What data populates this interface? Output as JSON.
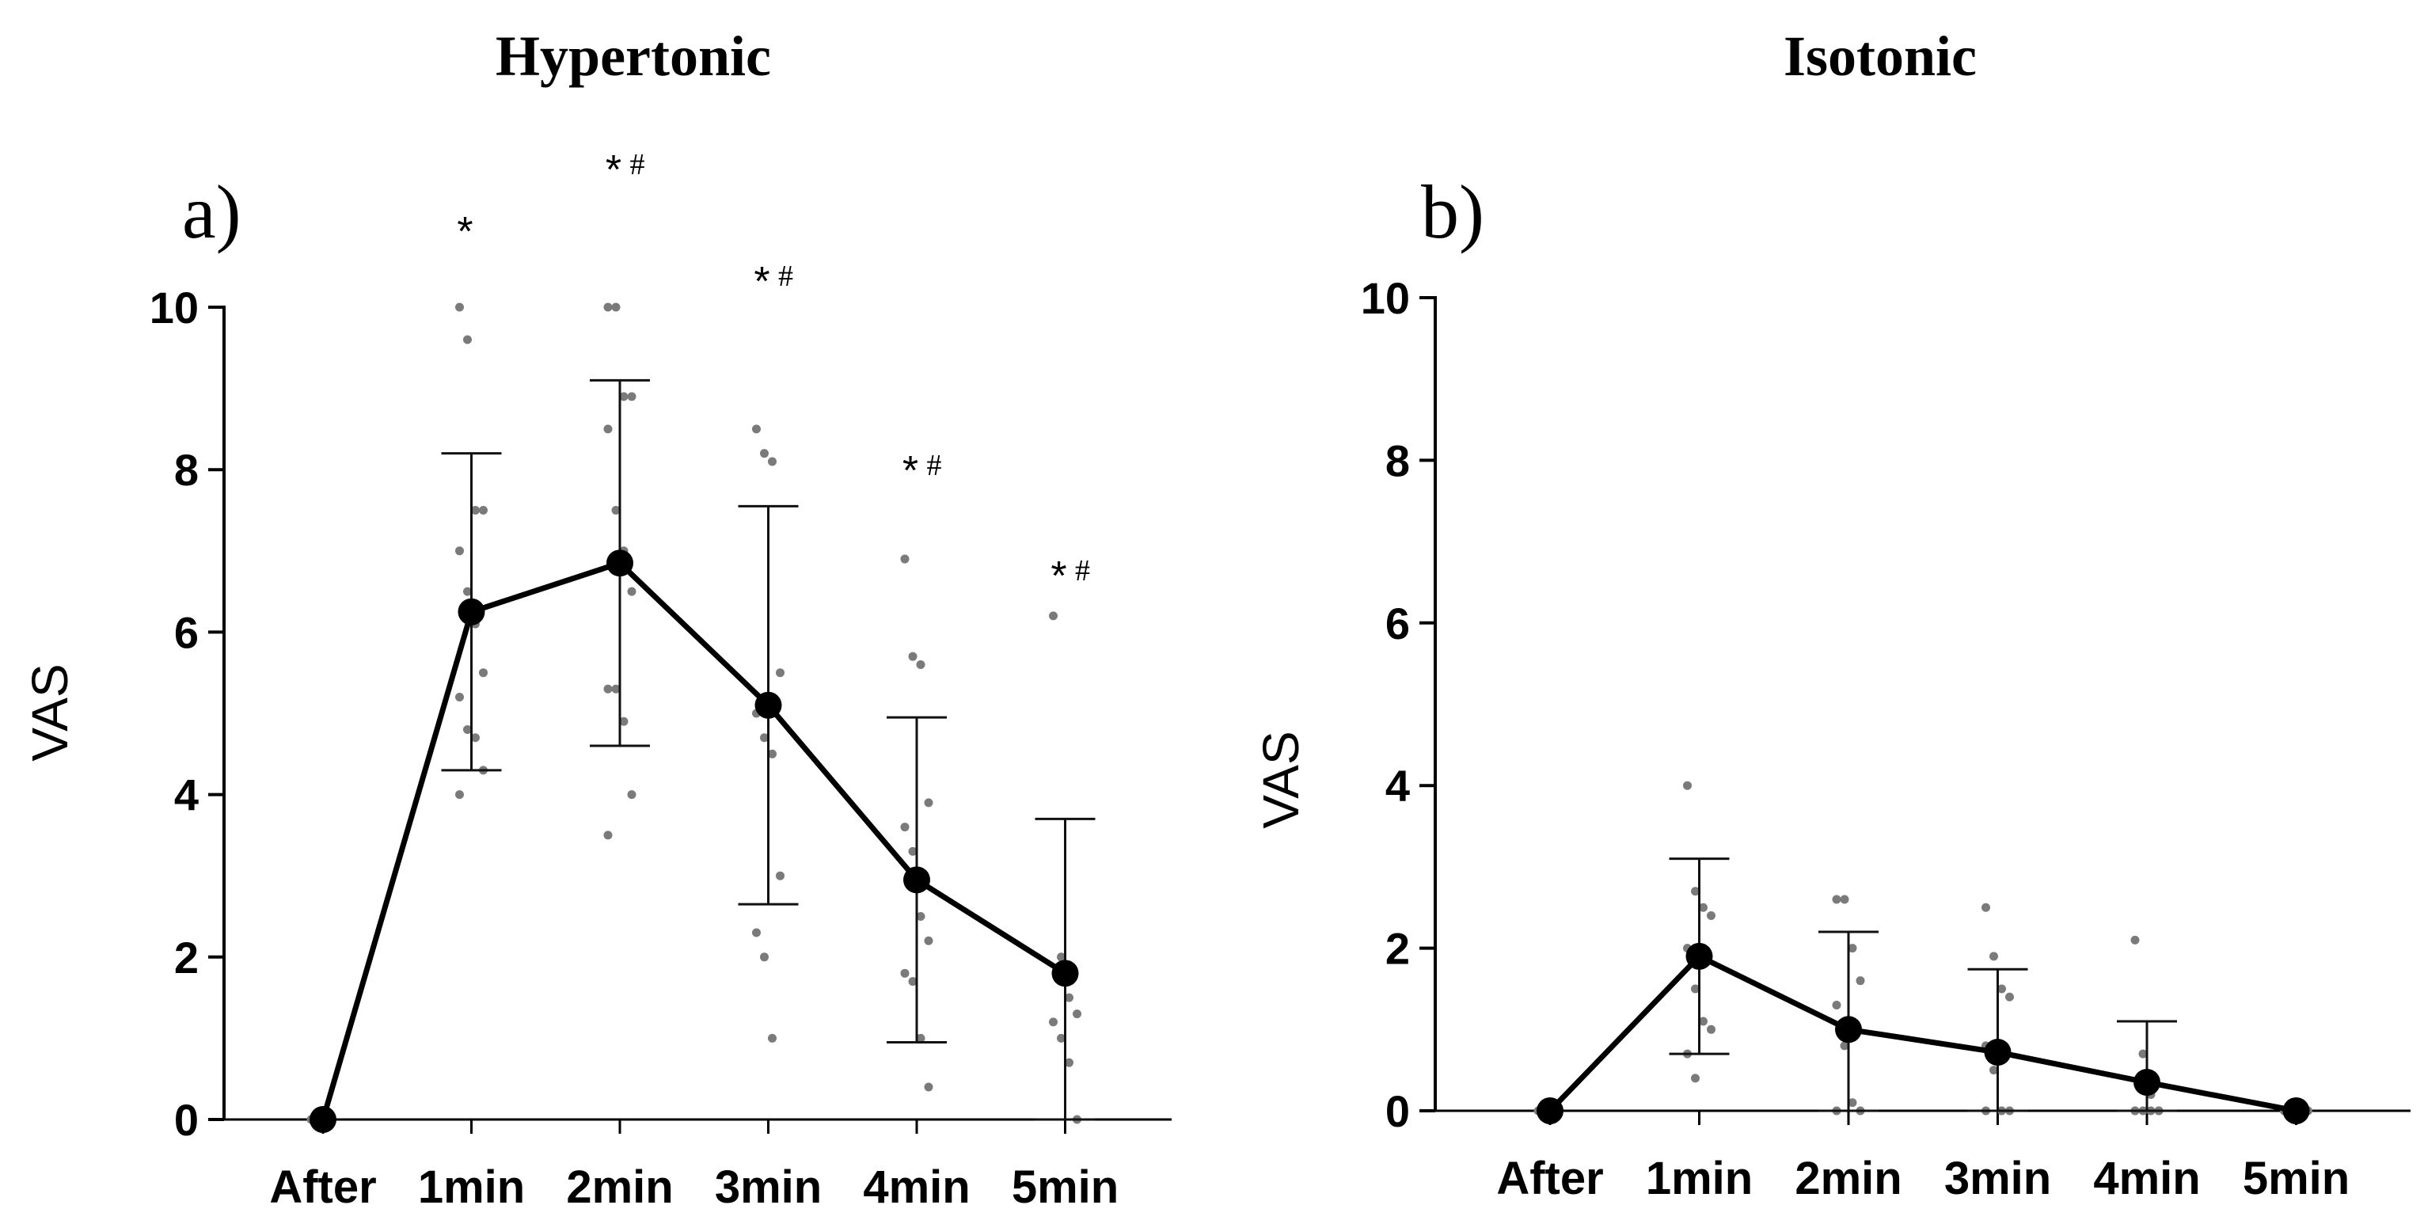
{
  "chart_data": [
    {
      "type": "line",
      "panel": "a)",
      "title": "Hypertonic",
      "ylabel": "VAS",
      "xlabel": "",
      "ylim": [
        0,
        10
      ],
      "yticks": [
        "0",
        "2",
        "4",
        "6",
        "8",
        "10"
      ],
      "categories": [
        "After",
        "1min",
        "2min",
        "3min",
        "4min",
        "5min"
      ],
      "series": [
        {
          "name": "Mean",
          "values": [
            0,
            6.25,
            6.85,
            5.1,
            2.95,
            1.8
          ],
          "sd": [
            0,
            1.95,
            2.25,
            2.45,
            2.0,
            1.9
          ]
        }
      ],
      "individual_points": [
        [
          0
        ],
        [
          10,
          9.6,
          7.5,
          7.5,
          7,
          6.5,
          6.1,
          5.5,
          5.2,
          4.8,
          4.7,
          4.3,
          4
        ],
        [
          10,
          10,
          8.9,
          8.9,
          8.5,
          7.5,
          7,
          6.5,
          5.3,
          5.3,
          4.9,
          4,
          3.5
        ],
        [
          8.5,
          8.2,
          8.1,
          5.5,
          5.0,
          4.7,
          4.5,
          3,
          2.3,
          2,
          1
        ],
        [
          6.9,
          5.7,
          5.6,
          3.9,
          3.6,
          3.3,
          2.5,
          2.2,
          1.8,
          1.7,
          1,
          0.4
        ],
        [
          6.2,
          2,
          1.5,
          1.3,
          1.2,
          1,
          0.7,
          0
        ]
      ],
      "significance": [
        {
          "category": "1min",
          "star": "*",
          "hash": ""
        },
        {
          "category": "2min",
          "star": "*",
          "hash": "#"
        },
        {
          "category": "3min",
          "star": "*",
          "hash": "#"
        },
        {
          "category": "4min",
          "star": "*",
          "hash": "#"
        },
        {
          "category": "5min",
          "star": "*",
          "hash": "#"
        }
      ]
    },
    {
      "type": "line",
      "panel": "b)",
      "title": "Isotonic",
      "ylabel": "VAS",
      "xlabel": "",
      "ylim": [
        0,
        10
      ],
      "yticks": [
        "0",
        "2",
        "4",
        "6",
        "8",
        "10"
      ],
      "categories": [
        "After",
        "1min",
        "2min",
        "3min",
        "4min",
        "5min"
      ],
      "series": [
        {
          "name": "Mean",
          "values": [
            0,
            1.9,
            1.0,
            0.72,
            0.35,
            0
          ],
          "sd": [
            0,
            1.2,
            1.2,
            1.02,
            0.75,
            0
          ]
        }
      ],
      "individual_points": [
        [
          0
        ],
        [
          4,
          2.7,
          2.5,
          2.4,
          2,
          1.5,
          1.1,
          1,
          0.7,
          0.4
        ],
        [
          2.6,
          2.6,
          2,
          1.6,
          1.3,
          0.8,
          0.1,
          0,
          0
        ],
        [
          2.5,
          1.9,
          1.5,
          1.4,
          0.8,
          0.5,
          0,
          0,
          0
        ],
        [
          2.1,
          0.7,
          0.2,
          0,
          0,
          0,
          0,
          0,
          0
        ],
        [
          0,
          0,
          0,
          0,
          0,
          0,
          0
        ]
      ],
      "significance": []
    }
  ]
}
